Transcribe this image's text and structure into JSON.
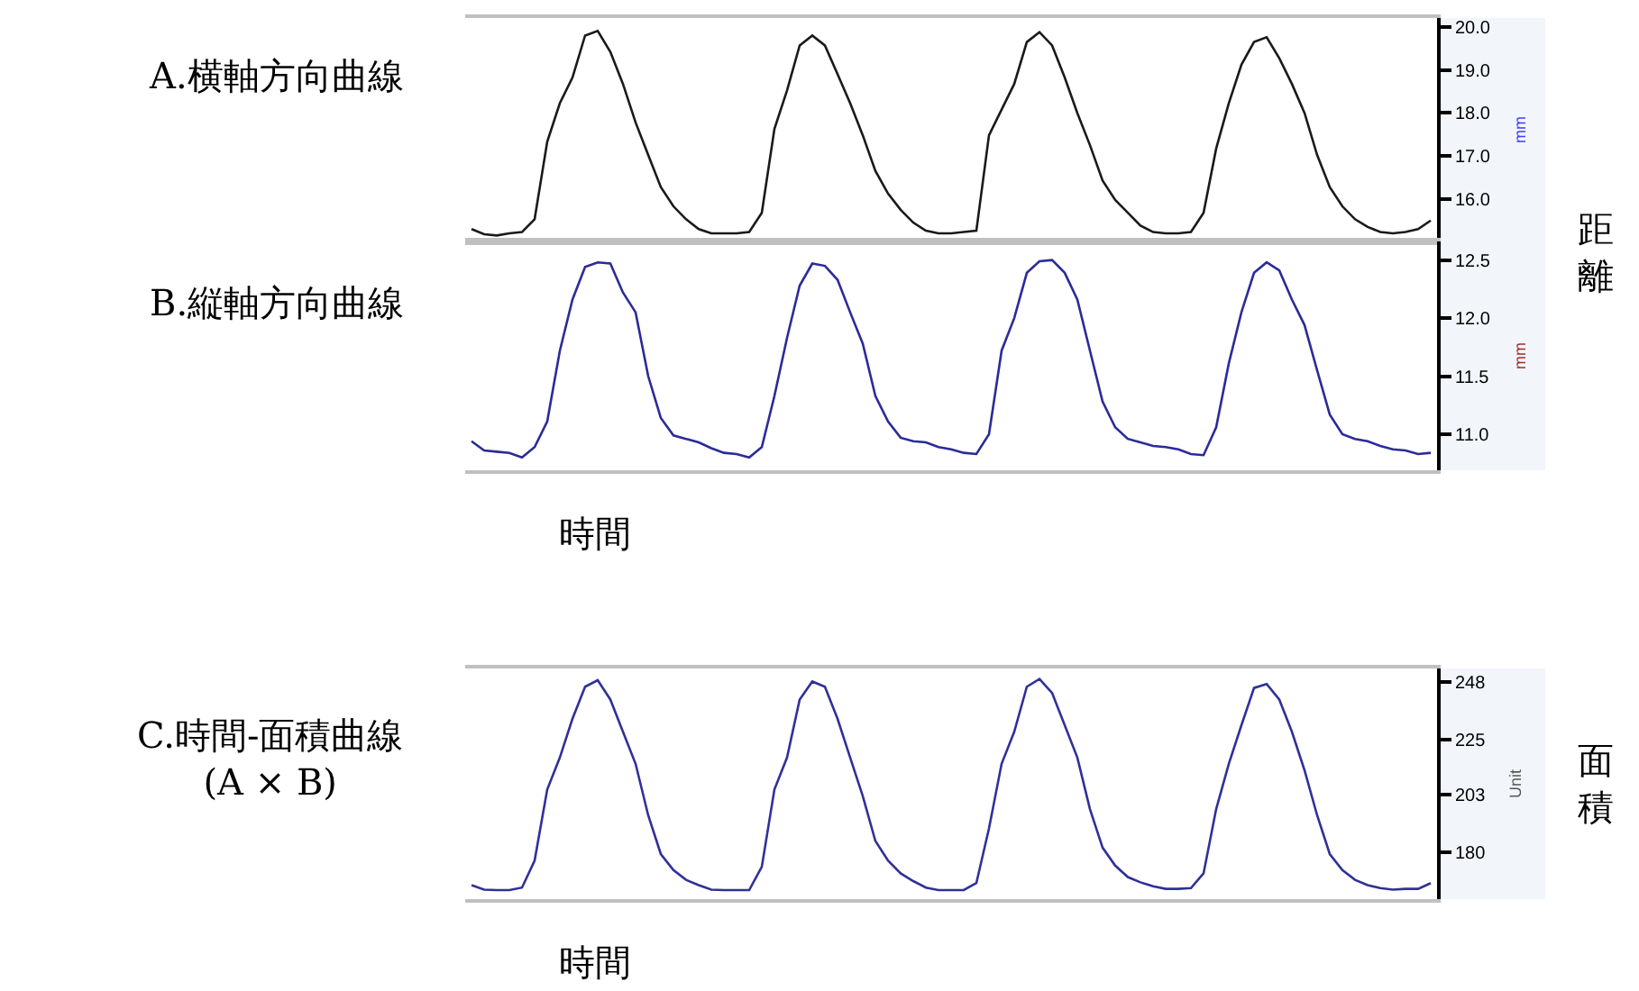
{
  "chart_data": [
    {
      "type": "line",
      "title": "A.横軸方向曲線",
      "ylabel": "mm",
      "annotations": [
        "距離"
      ],
      "tick_labels": "y",
      "ylim": [
        15.0,
        20.22
      ],
      "yticks": [
        {
          "value": 16,
          "label": "16.0"
        },
        {
          "value": 17,
          "label": "17.0"
        },
        {
          "value": 18,
          "label": "18.0"
        },
        {
          "value": 19,
          "label": "19.0"
        },
        {
          "value": 20,
          "label": "20.0"
        }
      ],
      "categories": [
        null,
        null,
        null,
        null,
        null,
        null,
        null,
        null,
        null,
        null,
        null,
        null,
        null,
        null,
        null,
        null,
        null,
        null,
        null,
        null,
        null,
        null,
        null,
        null,
        null,
        null,
        null,
        null,
        null,
        null,
        null,
        null,
        null,
        null,
        null,
        null,
        null,
        null,
        null,
        null,
        null,
        null,
        null,
        null,
        null,
        null,
        null,
        null,
        null,
        null,
        null,
        null,
        null,
        null,
        null,
        null,
        null,
        null,
        null,
        null,
        null,
        null,
        null,
        null,
        null,
        null,
        null,
        null,
        null,
        null,
        null,
        null,
        null,
        null,
        null,
        null,
        null
      ],
      "series": [
        {
          "color": "#1a1a1a",
          "values": [
            15.29,
            15.17,
            15.14,
            15.19,
            15.22,
            15.52,
            17.33,
            18.23,
            18.83,
            19.81,
            19.92,
            19.43,
            18.68,
            17.78,
            17.02,
            16.27,
            15.82,
            15.52,
            15.29,
            15.19,
            15.19,
            15.19,
            15.22,
            15.67,
            17.63,
            18.53,
            19.58,
            19.81,
            19.58,
            18.91,
            18.23,
            17.48,
            16.65,
            16.12,
            15.74,
            15.44,
            15.25,
            15.19,
            15.19,
            15.22,
            15.25,
            17.48,
            18.08,
            18.68,
            19.66,
            19.89,
            19.58,
            18.83,
            18.0,
            17.25,
            16.42,
            15.97,
            15.67,
            15.37,
            15.22,
            15.19,
            15.19,
            15.22,
            15.67,
            17.17,
            18.23,
            19.13,
            19.66,
            19.77,
            19.28,
            18.68,
            18.0,
            17.02,
            16.27,
            15.82,
            15.52,
            15.34,
            15.22,
            15.19,
            15.22,
            15.29,
            15.49
          ]
        }
      ]
    },
    {
      "type": "line",
      "title": "B.縦軸方向曲線",
      "xlabel": "時間",
      "ylabel": "mm",
      "tick_labels": "y",
      "ylim": [
        10.69,
        12.66
      ],
      "yticks": [
        {
          "value": 11,
          "label": "11.0"
        },
        11.5,
        {
          "value": 12,
          "label": "12.0"
        },
        12.5
      ],
      "categories": [
        null,
        null,
        null,
        null,
        null,
        null,
        null,
        null,
        null,
        null,
        null,
        null,
        null,
        null,
        null,
        null,
        null,
        null,
        null,
        null,
        null,
        null,
        null,
        null,
        null,
        null,
        null,
        null,
        null,
        null,
        null,
        null,
        null,
        null,
        null,
        null,
        null,
        null,
        null,
        null,
        null,
        null,
        null,
        null,
        null,
        null,
        null,
        null,
        null,
        null,
        null,
        null,
        null,
        null,
        null,
        null,
        null,
        null,
        null,
        null,
        null,
        null,
        null,
        null,
        null,
        null,
        null,
        null,
        null,
        null,
        null,
        null,
        null,
        null,
        null,
        null,
        null
      ],
      "series": [
        {
          "color": "#2b2b9a",
          "values": [
            10.94,
            10.86,
            10.85,
            10.84,
            10.8,
            10.89,
            11.11,
            11.72,
            12.16,
            12.44,
            12.48,
            12.47,
            12.22,
            12.05,
            11.5,
            11.14,
            10.99,
            10.96,
            10.93,
            10.88,
            10.84,
            10.83,
            10.8,
            10.89,
            11.33,
            11.83,
            12.28,
            12.47,
            12.45,
            12.33,
            12.05,
            11.78,
            11.33,
            11.11,
            10.97,
            10.94,
            10.93,
            10.89,
            10.87,
            10.84,
            10.83,
            11.0,
            11.72,
            12.0,
            12.39,
            12.49,
            12.5,
            12.39,
            12.16,
            11.72,
            11.28,
            11.06,
            10.96,
            10.93,
            10.9,
            10.89,
            10.87,
            10.83,
            10.82,
            11.06,
            11.61,
            12.05,
            12.39,
            12.48,
            12.41,
            12.16,
            11.94,
            11.55,
            11.17,
            11.0,
            10.96,
            10.94,
            10.9,
            10.87,
            10.86,
            10.83,
            10.84
          ]
        }
      ]
    },
    {
      "type": "line",
      "title": "C.時間-面積曲線\n(A × B)",
      "xlabel": "時間",
      "ylabel": "Unit",
      "annotations": [
        "面積"
      ],
      "tick_labels": "y",
      "ylim": [
        161.3,
        253.5
      ],
      "yticks": [
        180,
        203,
        225,
        248
      ],
      "categories": [
        null,
        null,
        null,
        null,
        null,
        null,
        null,
        null,
        null,
        null,
        null,
        null,
        null,
        null,
        null,
        null,
        null,
        null,
        null,
        null,
        null,
        null,
        null,
        null,
        null,
        null,
        null,
        null,
        null,
        null,
        null,
        null,
        null,
        null,
        null,
        null,
        null,
        null,
        null,
        null,
        null,
        null,
        null,
        null,
        null,
        null,
        null,
        null,
        null,
        null,
        null,
        null,
        null,
        null,
        null,
        null,
        null,
        null,
        null,
        null,
        null,
        null,
        null,
        null,
        null,
        null,
        null,
        null,
        null,
        null,
        null,
        null,
        null,
        null,
        null,
        null,
        null
      ],
      "series": [
        {
          "color": "#30309a",
          "values": [
            166.9,
            165.1,
            164.9,
            164.9,
            165.9,
            176.7,
            205.1,
            217.9,
            233.4,
            246.2,
            248.8,
            241.1,
            228.2,
            215.4,
            194.8,
            179.3,
            172.9,
            169.0,
            166.9,
            165.1,
            164.9,
            164.9,
            164.9,
            174.2,
            205.1,
            217.9,
            241.1,
            248.3,
            246.2,
            233.4,
            217.9,
            202.5,
            184.5,
            176.7,
            171.6,
            168.5,
            165.9,
            164.9,
            164.9,
            164.9,
            167.7,
            189.6,
            215.4,
            228.2,
            246.2,
            249.3,
            243.7,
            230.8,
            217.9,
            197.3,
            181.9,
            174.7,
            170.1,
            168.0,
            166.4,
            165.4,
            165.4,
            165.7,
            171.6,
            197.3,
            215.4,
            230.8,
            245.7,
            247.3,
            241.1,
            228.2,
            212.8,
            194.8,
            179.3,
            172.9,
            169.0,
            166.9,
            165.7,
            165.1,
            165.4,
            165.4,
            167.7
          ]
        }
      ]
    }
  ]
}
